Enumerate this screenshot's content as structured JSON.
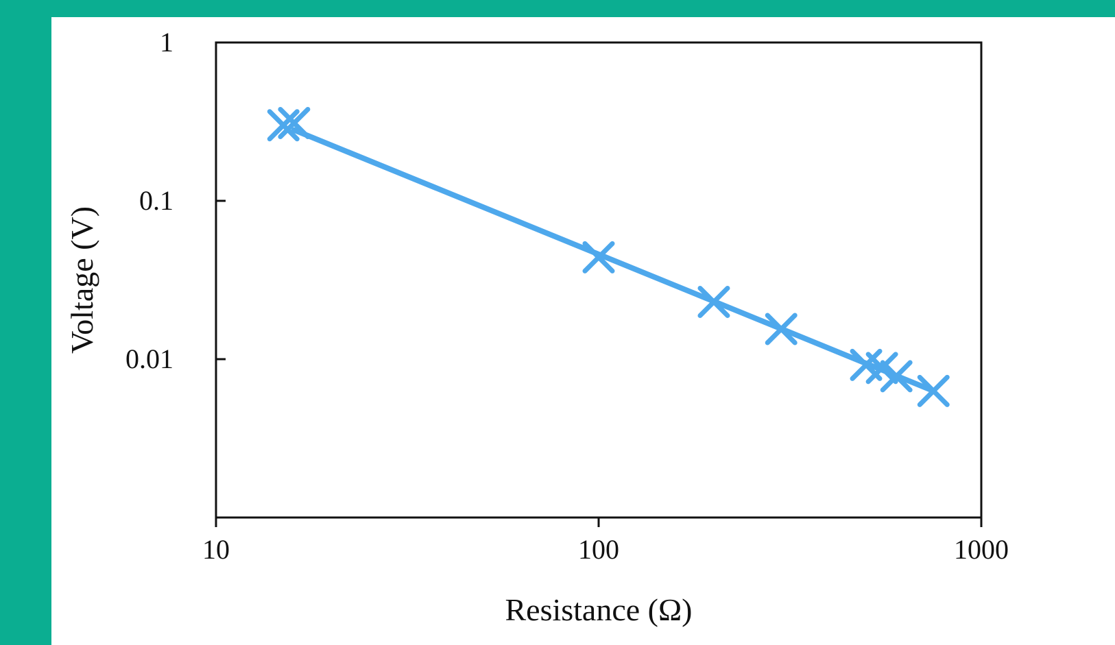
{
  "chart_data": {
    "type": "scatter",
    "title": "",
    "xlabel": "Resistance (Ω)",
    "ylabel": "Voltage (V)",
    "xscale": "log",
    "yscale": "log",
    "xlim": [
      10,
      1000
    ],
    "ylim": [
      0.001,
      1
    ],
    "x_ticks": [
      {
        "value": 10,
        "label": "10"
      },
      {
        "value": 100,
        "label": "100"
      },
      {
        "value": 1000,
        "label": "1000"
      }
    ],
    "y_ticks": [
      {
        "value": 1,
        "label": "1"
      },
      {
        "value": 0.1,
        "label": "0.1"
      },
      {
        "value": 0.01,
        "label": "0.01"
      }
    ],
    "grid": false,
    "legend": "none",
    "series": [
      {
        "marker": "x",
        "color": "#4ea8ec",
        "points": [
          {
            "x": 15,
            "y": 0.3
          },
          {
            "x": 16,
            "y": 0.31
          },
          {
            "x": 100,
            "y": 0.044
          },
          {
            "x": 200,
            "y": 0.023
          },
          {
            "x": 300,
            "y": 0.0155
          },
          {
            "x": 500,
            "y": 0.0092
          },
          {
            "x": 550,
            "y": 0.0088
          },
          {
            "x": 600,
            "y": 0.0078
          },
          {
            "x": 750,
            "y": 0.0063
          }
        ]
      }
    ],
    "fit_line": {
      "color": "#4ea8ec",
      "from": {
        "x": 16,
        "y": 0.28
      },
      "to": {
        "x": 750,
        "y": 0.0063
      }
    }
  }
}
